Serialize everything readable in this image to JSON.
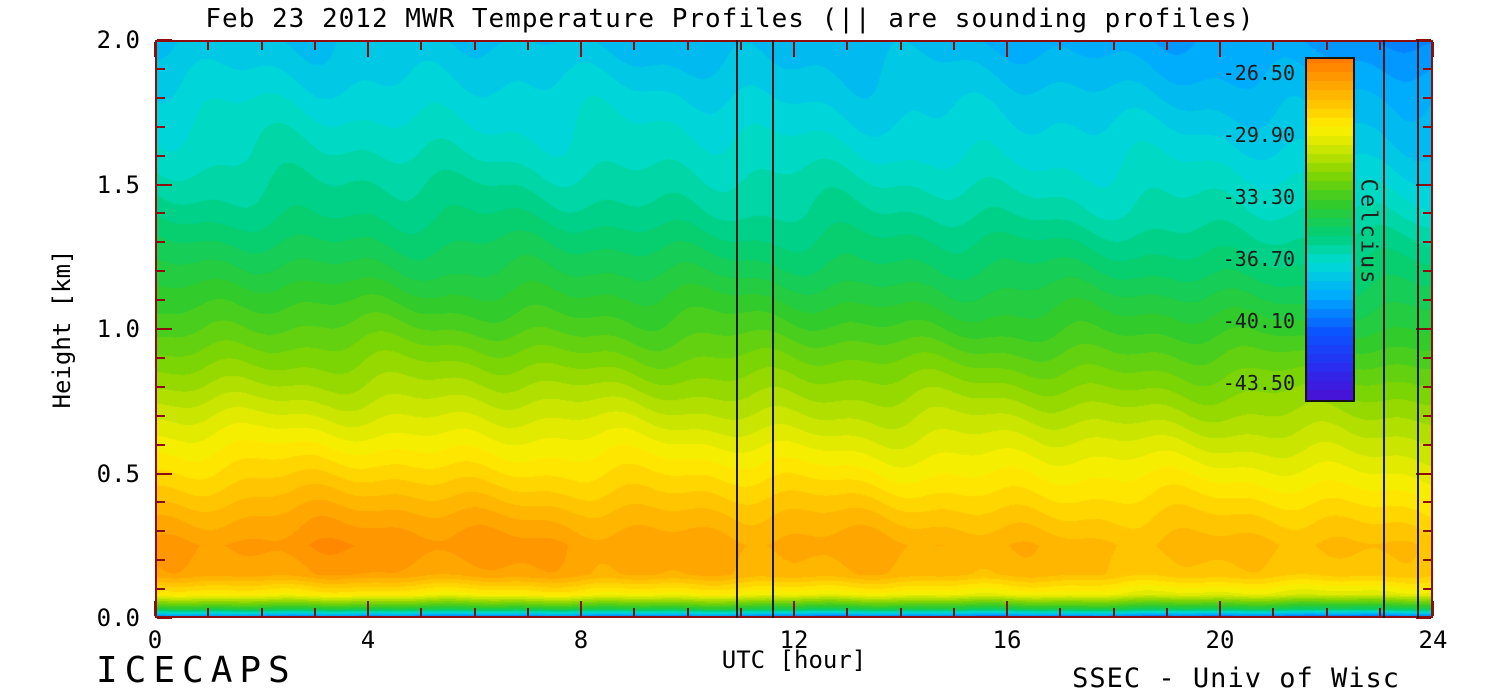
{
  "title": "Feb 23 2012 MWR Temperature Profiles (|| are sounding profiles)",
  "annotations": {
    "bottom_left": "ICECAPS",
    "bottom_right": "SSEC - Univ of Wisc"
  },
  "axis": {
    "frame_color": "#8b0f0f",
    "text_color": "#000000",
    "sounding_line_color": "#1c1c1c"
  },
  "chart_data": {
    "type": "heatmap",
    "title": "Feb 23 2012 MWR Temperature Profiles (|| are sounding profiles)",
    "xlabel": "UTC [hour]",
    "ylabel": "Height [km]",
    "xlim": [
      0,
      24
    ],
    "ylim": [
      0.0,
      2.0
    ],
    "x_major_ticks": [
      0,
      4,
      8,
      12,
      16,
      20,
      24
    ],
    "x_tick_labels": [
      "0",
      "4",
      "8",
      "12",
      "16",
      "20",
      "24"
    ],
    "x_minor_step": 1,
    "y_major_ticks": [
      0.0,
      0.5,
      1.0,
      1.5,
      2.0
    ],
    "y_tick_labels": [
      "0.0",
      "0.5",
      "1.0",
      "1.5",
      "2.0"
    ],
    "y_minor_step": 0.1,
    "grid": false,
    "sounding_hours": [
      10.93,
      11.6,
      23.08,
      23.72
    ],
    "x_hours": [
      0,
      2,
      4,
      6,
      8,
      10,
      12,
      14,
      16,
      18,
      20,
      22,
      24
    ],
    "y_heights_km": [
      0.0,
      0.03,
      0.08,
      0.15,
      0.25,
      0.35,
      0.5,
      0.65,
      0.8,
      1.0,
      1.2,
      1.4,
      1.6,
      1.8,
      2.0
    ],
    "temperature_c": [
      [
        -40.5,
        -40.3,
        -40.4,
        -40.3,
        -40.5,
        -40.4,
        -40.6,
        -40.5,
        -40.6,
        -40.6,
        -40.8,
        -40.7,
        -40.9
      ],
      [
        -34.2,
        -34.0,
        -34.1,
        -34.0,
        -34.2,
        -34.1,
        -34.3,
        -34.2,
        -34.4,
        -34.3,
        -34.5,
        -34.6,
        -34.8
      ],
      [
        -29.6,
        -29.3,
        -29.2,
        -29.4,
        -29.4,
        -29.6,
        -29.5,
        -29.7,
        -29.8,
        -29.9,
        -30.0,
        -30.1,
        -30.3
      ],
      [
        -27.3,
        -27.0,
        -26.8,
        -27.1,
        -27.2,
        -27.4,
        -27.3,
        -27.6,
        -27.8,
        -27.9,
        -28.0,
        -28.1,
        -28.4
      ],
      [
        -26.9,
        -26.5,
        -26.3,
        -26.7,
        -26.9,
        -27.0,
        -27.1,
        -27.3,
        -27.5,
        -27.6,
        -27.7,
        -27.8,
        -28.1
      ],
      [
        -27.5,
        -27.2,
        -27.1,
        -27.4,
        -27.5,
        -27.7,
        -27.8,
        -28.0,
        -28.2,
        -28.3,
        -28.4,
        -28.5,
        -28.7
      ],
      [
        -28.8,
        -28.6,
        -28.5,
        -28.7,
        -28.8,
        -29.0,
        -29.1,
        -29.3,
        -29.4,
        -29.5,
        -29.6,
        -29.7,
        -29.9
      ],
      [
        -30.1,
        -29.9,
        -29.9,
        -30.0,
        -30.1,
        -30.3,
        -30.4,
        -30.5,
        -30.6,
        -30.7,
        -30.8,
        -30.9,
        -31.1
      ],
      [
        -31.4,
        -31.2,
        -31.2,
        -31.3,
        -31.4,
        -31.5,
        -31.6,
        -31.7,
        -31.8,
        -31.9,
        -32.0,
        -32.1,
        -32.3
      ],
      [
        -33.0,
        -32.8,
        -32.8,
        -32.9,
        -33.0,
        -33.1,
        -33.2,
        -33.3,
        -33.4,
        -33.5,
        -33.6,
        -33.7,
        -33.9
      ],
      [
        -34.4,
        -34.2,
        -34.2,
        -34.3,
        -34.4,
        -34.5,
        -34.6,
        -34.7,
        -34.8,
        -34.9,
        -35.0,
        -35.1,
        -35.3
      ],
      [
        -35.6,
        -35.4,
        -35.4,
        -35.5,
        -35.6,
        -35.7,
        -35.8,
        -35.9,
        -36.0,
        -36.1,
        -36.2,
        -36.4,
        -36.6
      ],
      [
        -36.5,
        -36.3,
        -36.3,
        -36.4,
        -36.5,
        -36.6,
        -36.7,
        -36.8,
        -36.9,
        -37.0,
        -37.1,
        -37.3,
        -37.6
      ],
      [
        -37.2,
        -37.0,
        -37.1,
        -37.1,
        -37.2,
        -37.3,
        -37.4,
        -37.5,
        -37.6,
        -37.8,
        -37.9,
        -38.1,
        -38.5
      ],
      [
        -37.9,
        -37.7,
        -37.8,
        -37.9,
        -38.0,
        -38.1,
        -38.1,
        -38.2,
        -38.4,
        -38.6,
        -38.8,
        -39.1,
        -39.6
      ]
    ],
    "band_step_c": 0.5,
    "colorbar": {
      "title": "Celcius",
      "domain": [
        -44.35,
        -25.65
      ],
      "ticks": [
        -26.5,
        -29.9,
        -33.3,
        -36.7,
        -40.1,
        -43.5
      ],
      "tick_labels": [
        "-26.50",
        "-29.90",
        "-33.30",
        "-36.70",
        "-40.10",
        "-43.50"
      ]
    },
    "colormap": [
      {
        "pos": 0.0,
        "color": "#4a10d4"
      },
      {
        "pos": 0.09,
        "color": "#2b2bee"
      },
      {
        "pos": 0.2,
        "color": "#0a55ff"
      },
      {
        "pos": 0.3,
        "color": "#00a8ff"
      },
      {
        "pos": 0.4,
        "color": "#00ddd4"
      },
      {
        "pos": 0.48,
        "color": "#00cf7a"
      },
      {
        "pos": 0.57,
        "color": "#2ecb2e"
      },
      {
        "pos": 0.66,
        "color": "#7fd400"
      },
      {
        "pos": 0.75,
        "color": "#d9e900"
      },
      {
        "pos": 0.8,
        "color": "#ffef00"
      },
      {
        "pos": 0.9,
        "color": "#ffb300"
      },
      {
        "pos": 1.0,
        "color": "#ff7a00"
      }
    ]
  }
}
